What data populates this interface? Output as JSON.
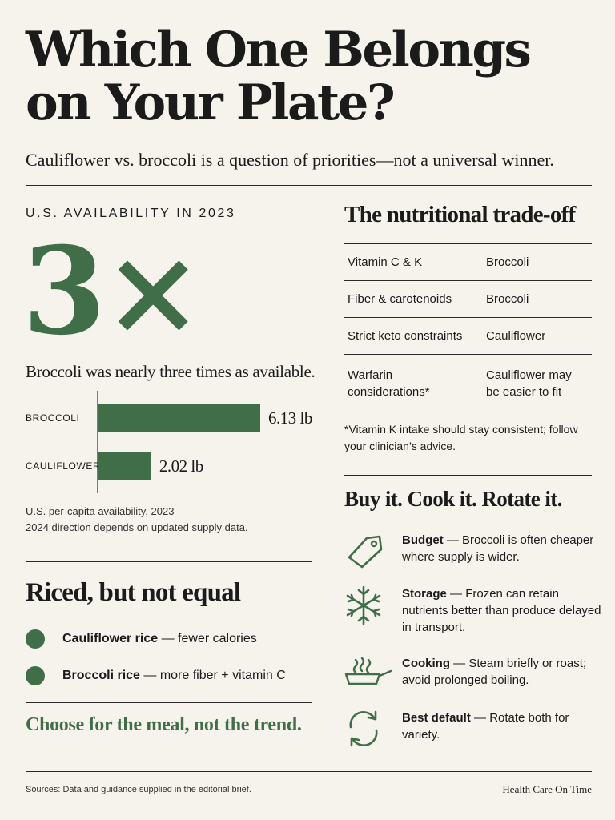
{
  "header": {
    "title": "Which One Belongs on Your Plate?",
    "subtitle": "Cauliflower vs. broccoli is a question of priorities—not a universal winner."
  },
  "availability": {
    "label": "U.S. AVAILABILITY IN 2023",
    "multiplier": "3×",
    "caption": "Broccoli was nearly three times as available.",
    "note_line1": "U.S. per-capita availability, 2023",
    "note_line2": "2024 direction depends on updated supply data."
  },
  "chart_data": {
    "type": "bar",
    "orientation": "horizontal",
    "categories": [
      "BROCCOLI",
      "CAULIFLOWER"
    ],
    "values": [
      6.13,
      2.02
    ],
    "value_labels": [
      "6.13 lb",
      "2.02 lb"
    ],
    "colors": {
      "bar": "#3f6e48"
    }
  },
  "riced": {
    "title": "Riced, but not equal",
    "items": [
      {
        "name": "Cauliflower rice",
        "detail": " — fewer calories"
      },
      {
        "name": "Broccoli rice",
        "detail": " — more fiber + vitamin C"
      }
    ]
  },
  "tagline": "Choose for the meal, not the trend.",
  "tradeoff": {
    "title": "The nutritional trade-off",
    "rows": [
      {
        "factor": "Vitamin C & K",
        "choice": "Broccoli"
      },
      {
        "factor": "Fiber & carotenoids",
        "choice": "Broccoli"
      },
      {
        "factor": "Strict keto constraints",
        "choice": "Cauliflower"
      },
      {
        "factor": "Warfarin considerations*",
        "choice": "Cauliflower may be easier to fit"
      }
    ],
    "footnote": "*Vitamin K intake should stay consistent; follow your clinician’s advice."
  },
  "buy": {
    "title": "Buy it. Cook it. Rotate it.",
    "tips": [
      {
        "icon": "price-tag-icon",
        "label": "Budget",
        "text": " — Broccoli is often cheaper where supply is wider."
      },
      {
        "icon": "snowflake-icon",
        "label": "Storage",
        "text": " — Frozen can retain nutrients better than produce delayed in transport."
      },
      {
        "icon": "steaming-pan-icon",
        "label": "Cooking",
        "text": " — Steam briefly or roast; avoid prolonged boiling."
      },
      {
        "icon": "rotate-arrows-icon",
        "label": "Best default",
        "text": " — Rotate both for variety."
      }
    ]
  },
  "footer": {
    "sources": "Sources: Data and guidance supplied in the editorial brief.",
    "brand": "Health Care On Time"
  },
  "colors": {
    "accent": "#3f6e48",
    "background": "#f6f3ed",
    "ink": "#1b1b1b"
  }
}
